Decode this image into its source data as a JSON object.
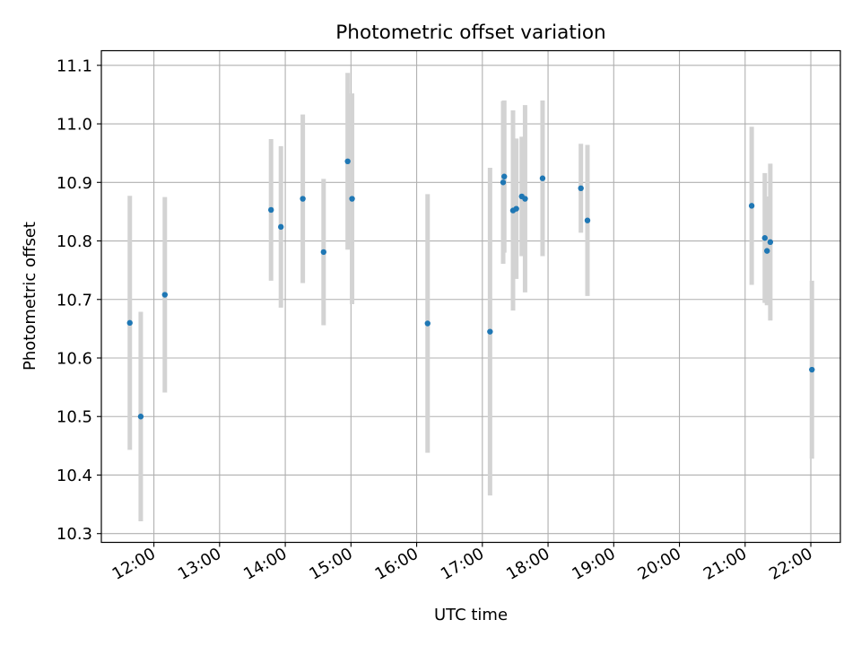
{
  "chart_data": {
    "type": "scatter",
    "title": "Photometric offset variation",
    "xlabel": "UTC time",
    "ylabel": "Photometric offset",
    "x_unit": "UTC time (HH:MM)",
    "xlim": [
      "11:12",
      "22:27"
    ],
    "ylim": [
      10.285,
      11.125
    ],
    "grid": true,
    "x_ticks": [
      "12:00",
      "13:00",
      "14:00",
      "15:00",
      "16:00",
      "17:00",
      "18:00",
      "19:00",
      "20:00",
      "21:00",
      "22:00"
    ],
    "y_ticks": [
      "10.3",
      "10.4",
      "10.5",
      "10.6",
      "10.7",
      "10.8",
      "10.9",
      "11.0",
      "11.1"
    ],
    "series": [
      {
        "marker_color": "#1f77b4",
        "errorbar_color": "#d3d3d3",
        "points": [
          {
            "x": "11:38",
            "y": 10.66,
            "err": 0.217
          },
          {
            "x": "11:48",
            "y": 10.5,
            "err": 0.179
          },
          {
            "x": "12:10",
            "y": 10.708,
            "err": 0.167
          },
          {
            "x": "13:47",
            "y": 10.853,
            "err": 0.121
          },
          {
            "x": "13:56",
            "y": 10.824,
            "err": 0.138
          },
          {
            "x": "14:16",
            "y": 10.872,
            "err": 0.144
          },
          {
            "x": "14:35",
            "y": 10.781,
            "err": 0.125
          },
          {
            "x": "14:57",
            "y": 10.936,
            "err": 0.151
          },
          {
            "x": "15:01",
            "y": 10.872,
            "err": 0.18
          },
          {
            "x": "16:10",
            "y": 10.659,
            "err": 0.221
          },
          {
            "x": "17:07",
            "y": 10.645,
            "err": 0.28
          },
          {
            "x": "17:19",
            "y": 10.9,
            "err": 0.139
          },
          {
            "x": "17:20",
            "y": 10.91,
            "err": 0.13
          },
          {
            "x": "17:28",
            "y": 10.852,
            "err": 0.171
          },
          {
            "x": "17:31",
            "y": 10.855,
            "err": 0.12
          },
          {
            "x": "17:36",
            "y": 10.876,
            "err": 0.102
          },
          {
            "x": "17:39",
            "y": 10.872,
            "err": 0.16
          },
          {
            "x": "17:55",
            "y": 10.907,
            "err": 0.133
          },
          {
            "x": "18:30",
            "y": 10.89,
            "err": 0.076
          },
          {
            "x": "18:36",
            "y": 10.835,
            "err": 0.129
          },
          {
            "x": "21:06",
            "y": 10.86,
            "err": 0.135
          },
          {
            "x": "21:18",
            "y": 10.805,
            "err": 0.111
          },
          {
            "x": "21:20",
            "y": 10.783,
            "err": 0.093
          },
          {
            "x": "21:23",
            "y": 10.798,
            "err": 0.134
          },
          {
            "x": "22:01",
            "y": 10.58,
            "err": 0.152
          }
        ]
      }
    ]
  }
}
